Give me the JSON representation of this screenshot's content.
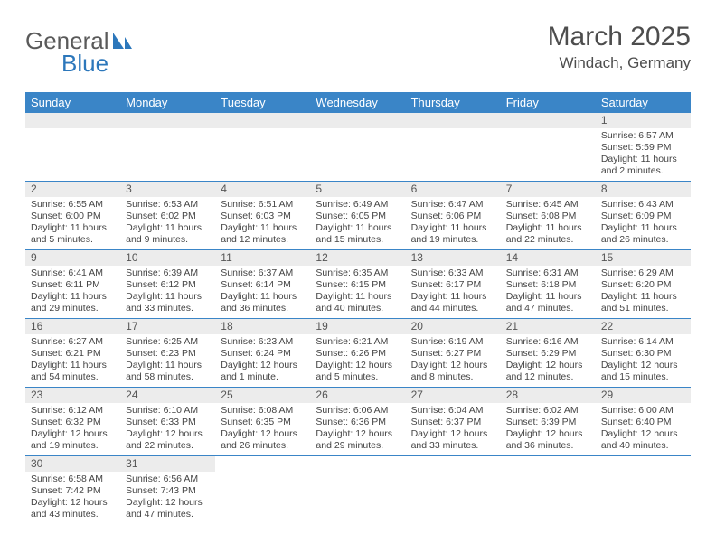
{
  "logo": {
    "general": "General",
    "blue": "Blue"
  },
  "title": "March 2025",
  "location": "Windach, Germany",
  "colors": {
    "header_bg": "#3a85c7",
    "header_fg": "#ffffff",
    "row_border": "#3a85c7",
    "daynum_bg": "#ececec",
    "daynum_fg": "#555555",
    "body_text": "#444444",
    "title_color": "#4d4d4d",
    "logo_gray": "#5a5a5a",
    "logo_blue": "#2c77bb",
    "page_bg": "#ffffff"
  },
  "typography": {
    "title_fontsize": 30,
    "location_fontsize": 17,
    "header_fontsize": 13,
    "daynum_fontsize": 12,
    "body_fontsize": 10.5,
    "logo_fontsize": 26
  },
  "weekdays": [
    "Sunday",
    "Monday",
    "Tuesday",
    "Wednesday",
    "Thursday",
    "Friday",
    "Saturday"
  ],
  "weeks": [
    [
      null,
      null,
      null,
      null,
      null,
      null,
      {
        "n": "1",
        "sr": "Sunrise: 6:57 AM",
        "ss": "Sunset: 5:59 PM",
        "dl": "Daylight: 11 hours and 2 minutes."
      }
    ],
    [
      {
        "n": "2",
        "sr": "Sunrise: 6:55 AM",
        "ss": "Sunset: 6:00 PM",
        "dl": "Daylight: 11 hours and 5 minutes."
      },
      {
        "n": "3",
        "sr": "Sunrise: 6:53 AM",
        "ss": "Sunset: 6:02 PM",
        "dl": "Daylight: 11 hours and 9 minutes."
      },
      {
        "n": "4",
        "sr": "Sunrise: 6:51 AM",
        "ss": "Sunset: 6:03 PM",
        "dl": "Daylight: 11 hours and 12 minutes."
      },
      {
        "n": "5",
        "sr": "Sunrise: 6:49 AM",
        "ss": "Sunset: 6:05 PM",
        "dl": "Daylight: 11 hours and 15 minutes."
      },
      {
        "n": "6",
        "sr": "Sunrise: 6:47 AM",
        "ss": "Sunset: 6:06 PM",
        "dl": "Daylight: 11 hours and 19 minutes."
      },
      {
        "n": "7",
        "sr": "Sunrise: 6:45 AM",
        "ss": "Sunset: 6:08 PM",
        "dl": "Daylight: 11 hours and 22 minutes."
      },
      {
        "n": "8",
        "sr": "Sunrise: 6:43 AM",
        "ss": "Sunset: 6:09 PM",
        "dl": "Daylight: 11 hours and 26 minutes."
      }
    ],
    [
      {
        "n": "9",
        "sr": "Sunrise: 6:41 AM",
        "ss": "Sunset: 6:11 PM",
        "dl": "Daylight: 11 hours and 29 minutes."
      },
      {
        "n": "10",
        "sr": "Sunrise: 6:39 AM",
        "ss": "Sunset: 6:12 PM",
        "dl": "Daylight: 11 hours and 33 minutes."
      },
      {
        "n": "11",
        "sr": "Sunrise: 6:37 AM",
        "ss": "Sunset: 6:14 PM",
        "dl": "Daylight: 11 hours and 36 minutes."
      },
      {
        "n": "12",
        "sr": "Sunrise: 6:35 AM",
        "ss": "Sunset: 6:15 PM",
        "dl": "Daylight: 11 hours and 40 minutes."
      },
      {
        "n": "13",
        "sr": "Sunrise: 6:33 AM",
        "ss": "Sunset: 6:17 PM",
        "dl": "Daylight: 11 hours and 44 minutes."
      },
      {
        "n": "14",
        "sr": "Sunrise: 6:31 AM",
        "ss": "Sunset: 6:18 PM",
        "dl": "Daylight: 11 hours and 47 minutes."
      },
      {
        "n": "15",
        "sr": "Sunrise: 6:29 AM",
        "ss": "Sunset: 6:20 PM",
        "dl": "Daylight: 11 hours and 51 minutes."
      }
    ],
    [
      {
        "n": "16",
        "sr": "Sunrise: 6:27 AM",
        "ss": "Sunset: 6:21 PM",
        "dl": "Daylight: 11 hours and 54 minutes."
      },
      {
        "n": "17",
        "sr": "Sunrise: 6:25 AM",
        "ss": "Sunset: 6:23 PM",
        "dl": "Daylight: 11 hours and 58 minutes."
      },
      {
        "n": "18",
        "sr": "Sunrise: 6:23 AM",
        "ss": "Sunset: 6:24 PM",
        "dl": "Daylight: 12 hours and 1 minute."
      },
      {
        "n": "19",
        "sr": "Sunrise: 6:21 AM",
        "ss": "Sunset: 6:26 PM",
        "dl": "Daylight: 12 hours and 5 minutes."
      },
      {
        "n": "20",
        "sr": "Sunrise: 6:19 AM",
        "ss": "Sunset: 6:27 PM",
        "dl": "Daylight: 12 hours and 8 minutes."
      },
      {
        "n": "21",
        "sr": "Sunrise: 6:16 AM",
        "ss": "Sunset: 6:29 PM",
        "dl": "Daylight: 12 hours and 12 minutes."
      },
      {
        "n": "22",
        "sr": "Sunrise: 6:14 AM",
        "ss": "Sunset: 6:30 PM",
        "dl": "Daylight: 12 hours and 15 minutes."
      }
    ],
    [
      {
        "n": "23",
        "sr": "Sunrise: 6:12 AM",
        "ss": "Sunset: 6:32 PM",
        "dl": "Daylight: 12 hours and 19 minutes."
      },
      {
        "n": "24",
        "sr": "Sunrise: 6:10 AM",
        "ss": "Sunset: 6:33 PM",
        "dl": "Daylight: 12 hours and 22 minutes."
      },
      {
        "n": "25",
        "sr": "Sunrise: 6:08 AM",
        "ss": "Sunset: 6:35 PM",
        "dl": "Daylight: 12 hours and 26 minutes."
      },
      {
        "n": "26",
        "sr": "Sunrise: 6:06 AM",
        "ss": "Sunset: 6:36 PM",
        "dl": "Daylight: 12 hours and 29 minutes."
      },
      {
        "n": "27",
        "sr": "Sunrise: 6:04 AM",
        "ss": "Sunset: 6:37 PM",
        "dl": "Daylight: 12 hours and 33 minutes."
      },
      {
        "n": "28",
        "sr": "Sunrise: 6:02 AM",
        "ss": "Sunset: 6:39 PM",
        "dl": "Daylight: 12 hours and 36 minutes."
      },
      {
        "n": "29",
        "sr": "Sunrise: 6:00 AM",
        "ss": "Sunset: 6:40 PM",
        "dl": "Daylight: 12 hours and 40 minutes."
      }
    ],
    [
      {
        "n": "30",
        "sr": "Sunrise: 6:58 AM",
        "ss": "Sunset: 7:42 PM",
        "dl": "Daylight: 12 hours and 43 minutes."
      },
      {
        "n": "31",
        "sr": "Sunrise: 6:56 AM",
        "ss": "Sunset: 7:43 PM",
        "dl": "Daylight: 12 hours and 47 minutes."
      },
      null,
      null,
      null,
      null,
      null
    ]
  ]
}
